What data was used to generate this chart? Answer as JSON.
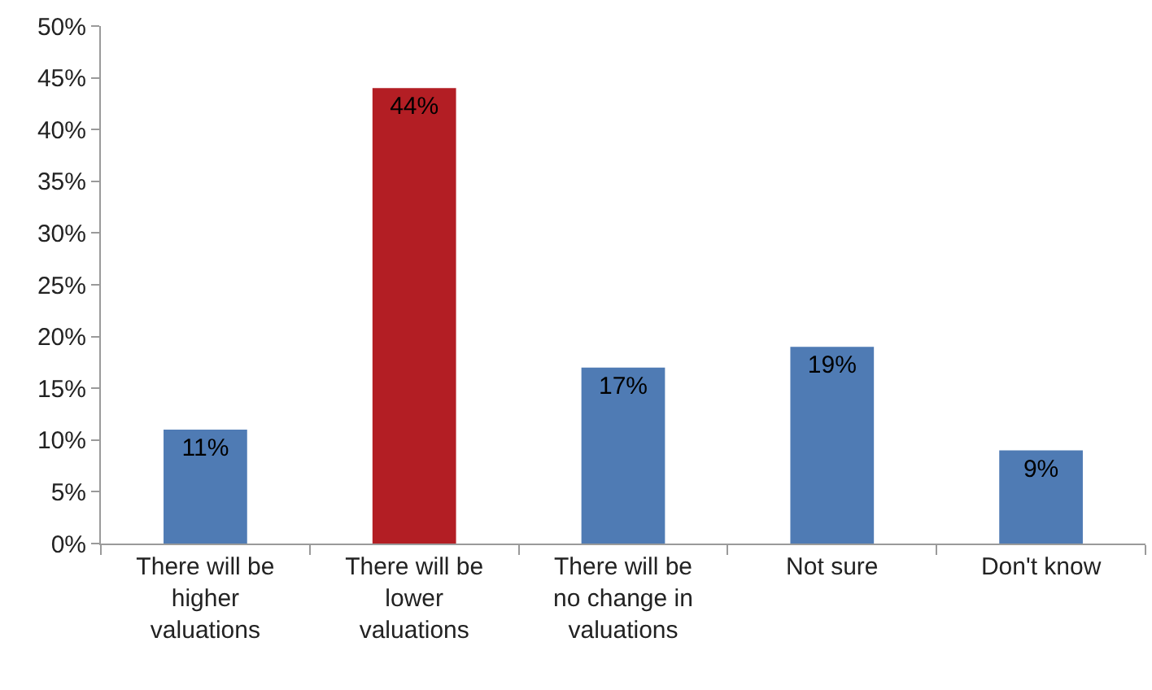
{
  "chart_data": {
    "type": "bar",
    "categories": [
      "There will be higher valuations",
      "There will be lower valuations",
      "There will be no change in valuations",
      "Not sure",
      "Don't know"
    ],
    "values": [
      11,
      44,
      17,
      19,
      9
    ],
    "colors": [
      "#4f7bb4",
      "#b31e24",
      "#4f7bb4",
      "#4f7bb4",
      "#4f7bb4"
    ],
    "value_labels": [
      "11%",
      "44%",
      "17%",
      "19%",
      "9%"
    ],
    "ylim": [
      0,
      50
    ],
    "yticks": [
      {
        "value": 0,
        "label": "0%"
      },
      {
        "value": 5,
        "label": "5%"
      },
      {
        "value": 10,
        "label": "10%"
      },
      {
        "value": 15,
        "label": "15%"
      },
      {
        "value": 20,
        "label": "20%"
      },
      {
        "value": 25,
        "label": "25%"
      },
      {
        "value": 30,
        "label": "30%"
      },
      {
        "value": 35,
        "label": "35%"
      },
      {
        "value": 40,
        "label": "40%"
      },
      {
        "value": 45,
        "label": "45%"
      },
      {
        "value": 50,
        "label": "50%"
      }
    ]
  }
}
